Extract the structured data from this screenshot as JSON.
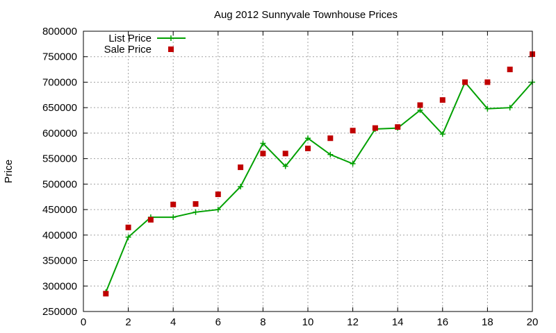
{
  "chart_data": {
    "type": "line",
    "title": "Aug 2012 Sunnyvale Townhouse Prices",
    "xlabel": "",
    "ylabel": "Price",
    "xlim": [
      0,
      20
    ],
    "ylim": [
      250000,
      800000
    ],
    "x_ticks": [
      0,
      2,
      4,
      6,
      8,
      10,
      12,
      14,
      16,
      18,
      20
    ],
    "y_ticks": [
      250000,
      300000,
      350000,
      400000,
      450000,
      500000,
      550000,
      600000,
      650000,
      700000,
      750000,
      800000
    ],
    "grid": true,
    "legend_position": "top-left",
    "series": [
      {
        "name": "List Price",
        "style": "lines+plus-points",
        "color": "#00a000",
        "x": [
          1,
          2,
          3,
          4,
          5,
          6,
          7,
          8,
          9,
          10,
          11,
          12,
          13,
          14,
          15,
          16,
          17,
          18,
          19,
          20
        ],
        "values": [
          288000,
          396000,
          435000,
          435000,
          445000,
          450000,
          495000,
          580000,
          535000,
          590000,
          558000,
          540000,
          608000,
          610000,
          645000,
          598000,
          700000,
          648000,
          650000,
          700000
        ]
      },
      {
        "name": "Sale Price",
        "style": "square-points",
        "color": "#c00000",
        "x": [
          1,
          2,
          3,
          4,
          5,
          6,
          7,
          8,
          9,
          10,
          11,
          12,
          13,
          14,
          15,
          16,
          17,
          18,
          19,
          20
        ],
        "values": [
          285000,
          415000,
          430000,
          460000,
          461000,
          480000,
          533000,
          560000,
          560000,
          570000,
          590000,
          605000,
          610000,
          612000,
          655000,
          665000,
          700000,
          700000,
          725000,
          755000
        ]
      }
    ]
  }
}
